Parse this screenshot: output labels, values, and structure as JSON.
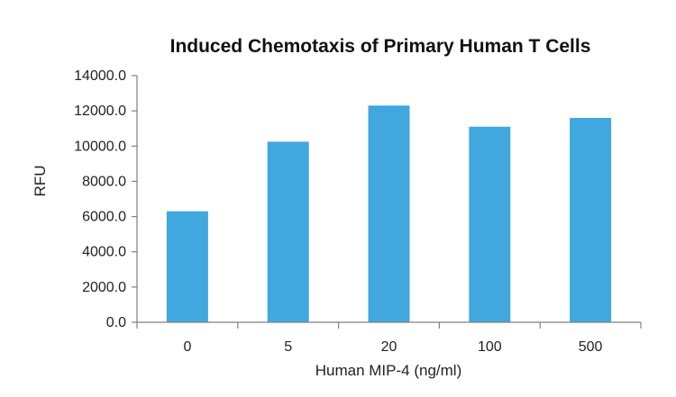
{
  "chart_data": {
    "type": "bar",
    "title": "Induced Chemotaxis of Primary Human T Cells",
    "xlabel": "Human MIP-4 (ng/ml)",
    "ylabel": "RFU",
    "categories": [
      "0",
      "5",
      "20",
      "100",
      "500"
    ],
    "values": [
      6300,
      10250,
      12300,
      11100,
      11600
    ],
    "ylim": [
      0,
      14000
    ],
    "yticks": [
      "0.0",
      "2000.0",
      "4000.0",
      "6000.0",
      "8000.0",
      "10000.0",
      "12000.0",
      "14000.0"
    ],
    "grid": false,
    "legend": "none",
    "colors": {
      "bar": "#41A7DF",
      "axis": "#808080",
      "text": "#222222"
    }
  }
}
